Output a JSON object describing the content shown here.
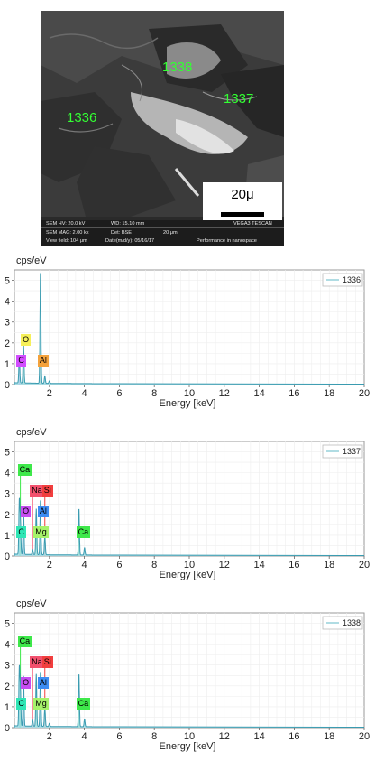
{
  "sem": {
    "points": [
      {
        "label": "1338"
      },
      {
        "label": "1337"
      },
      {
        "label": "1336"
      }
    ],
    "scale_label": "20μ",
    "footer": {
      "hv": "SEM HV: 20.0 kV",
      "wd": "WD: 15.10 mm",
      "mag": "SEM MAG: 2.00 kx",
      "det": "Det: BSE",
      "scale_small": "20 μm",
      "view": "View field: 104 μm",
      "date": "Date(m/d/y): 05/16/17",
      "brand": "VEGA3 TESCAN",
      "slogan": "Performance in nanospace"
    }
  },
  "chart_data": [
    {
      "type": "line",
      "title": "",
      "ylabel": "cps/eV",
      "xlabel": "Energy [keV]",
      "xlim": [
        0,
        20
      ],
      "ylim": [
        0,
        5.5
      ],
      "xticks": [
        "2",
        "4",
        "6",
        "8",
        "10",
        "12",
        "14",
        "16",
        "18",
        "20"
      ],
      "yticks": [
        "0",
        "1",
        "2",
        "3",
        "4",
        "5"
      ],
      "grid": true,
      "legend": "top-right",
      "series": [
        {
          "name": "1336",
          "peaks": [
            {
              "x": 0.28,
              "y": 1.3
            },
            {
              "x": 0.52,
              "y": 1.85
            },
            {
              "x": 1.49,
              "y": 5.3
            },
            {
              "x": 1.74,
              "y": 0.35
            },
            {
              "x": 2.0,
              "y": 0.12
            }
          ]
        }
      ],
      "elements": [
        {
          "symbol": "C",
          "x": 0.28,
          "row": 1,
          "color": "#d24dff"
        },
        {
          "symbol": "O",
          "x": 0.52,
          "row": 2,
          "color": "#f6f05a"
        },
        {
          "symbol": "Al",
          "x": 1.49,
          "row": 1,
          "color": "#f3a23c"
        }
      ]
    },
    {
      "type": "line",
      "title": "",
      "ylabel": "cps/eV",
      "xlabel": "Energy [keV]",
      "xlim": [
        0,
        20
      ],
      "ylim": [
        0,
        5.5
      ],
      "xticks": [
        "2",
        "4",
        "6",
        "8",
        "10",
        "12",
        "14",
        "16",
        "18",
        "20"
      ],
      "yticks": [
        "0",
        "1",
        "2",
        "3",
        "4",
        "5"
      ],
      "grid": true,
      "legend": "top-right",
      "series": [
        {
          "name": "1337",
          "peaks": [
            {
              "x": 0.28,
              "y": 2.5
            },
            {
              "x": 0.34,
              "y": 1.6
            },
            {
              "x": 0.52,
              "y": 2.2
            },
            {
              "x": 1.04,
              "y": 0.25
            },
            {
              "x": 1.25,
              "y": 2.2
            },
            {
              "x": 1.49,
              "y": 2.6
            },
            {
              "x": 1.74,
              "y": 0.9
            },
            {
              "x": 3.69,
              "y": 2.2
            },
            {
              "x": 4.01,
              "y": 0.35
            }
          ]
        }
      ],
      "elements": [
        {
          "symbol": "C",
          "x": 0.28,
          "row": 1,
          "color": "#2fe6b5"
        },
        {
          "symbol": "Mg",
          "x": 1.25,
          "row": 1,
          "color": "#a6f26a"
        },
        {
          "symbol": "Ca",
          "x": 3.69,
          "row": 1,
          "color": "#3ee84a"
        },
        {
          "symbol": "O",
          "x": 0.52,
          "row": 2,
          "color": "#c64df2"
        },
        {
          "symbol": "Al",
          "x": 1.49,
          "row": 2,
          "color": "#3d8cf2"
        },
        {
          "symbol": "Na",
          "x": 1.04,
          "row": 3,
          "color": "#f2506d"
        },
        {
          "symbol": "Si",
          "x": 1.74,
          "row": 3,
          "color": "#f23e3e"
        },
        {
          "symbol": "Ca",
          "x": 0.34,
          "row": 4,
          "color": "#3ee84a"
        }
      ]
    },
    {
      "type": "line",
      "title": "",
      "ylabel": "cps/eV",
      "xlabel": "Energy [keV]",
      "xlim": [
        0,
        20
      ],
      "ylim": [
        0,
        5.5
      ],
      "xticks": [
        "2",
        "4",
        "6",
        "8",
        "10",
        "12",
        "14",
        "16",
        "18",
        "20"
      ],
      "yticks": [
        "0",
        "1",
        "2",
        "3",
        "4",
        "5"
      ],
      "grid": true,
      "legend": "top-right",
      "series": [
        {
          "name": "1338",
          "peaks": [
            {
              "x": 0.28,
              "y": 2.7
            },
            {
              "x": 0.34,
              "y": 1.7
            },
            {
              "x": 0.52,
              "y": 2.4
            },
            {
              "x": 1.04,
              "y": 0.3
            },
            {
              "x": 1.25,
              "y": 2.5
            },
            {
              "x": 1.49,
              "y": 2.6
            },
            {
              "x": 1.74,
              "y": 0.9
            },
            {
              "x": 2.0,
              "y": 0.15
            },
            {
              "x": 3.69,
              "y": 2.5
            },
            {
              "x": 4.01,
              "y": 0.35
            }
          ]
        }
      ],
      "elements": [
        {
          "symbol": "C",
          "x": 0.28,
          "row": 1,
          "color": "#2fe6b5"
        },
        {
          "symbol": "Mg",
          "x": 1.25,
          "row": 1,
          "color": "#a6f26a"
        },
        {
          "symbol": "Ca",
          "x": 3.69,
          "row": 1,
          "color": "#3ee84a"
        },
        {
          "symbol": "O",
          "x": 0.52,
          "row": 2,
          "color": "#c64df2"
        },
        {
          "symbol": "Al",
          "x": 1.49,
          "row": 2,
          "color": "#3d8cf2"
        },
        {
          "symbol": "Na",
          "x": 1.04,
          "row": 3,
          "color": "#f2506d"
        },
        {
          "symbol": "Si",
          "x": 1.74,
          "row": 3,
          "color": "#f23e3e"
        },
        {
          "symbol": "Ca",
          "x": 0.34,
          "row": 4,
          "color": "#3ee84a"
        }
      ]
    }
  ]
}
